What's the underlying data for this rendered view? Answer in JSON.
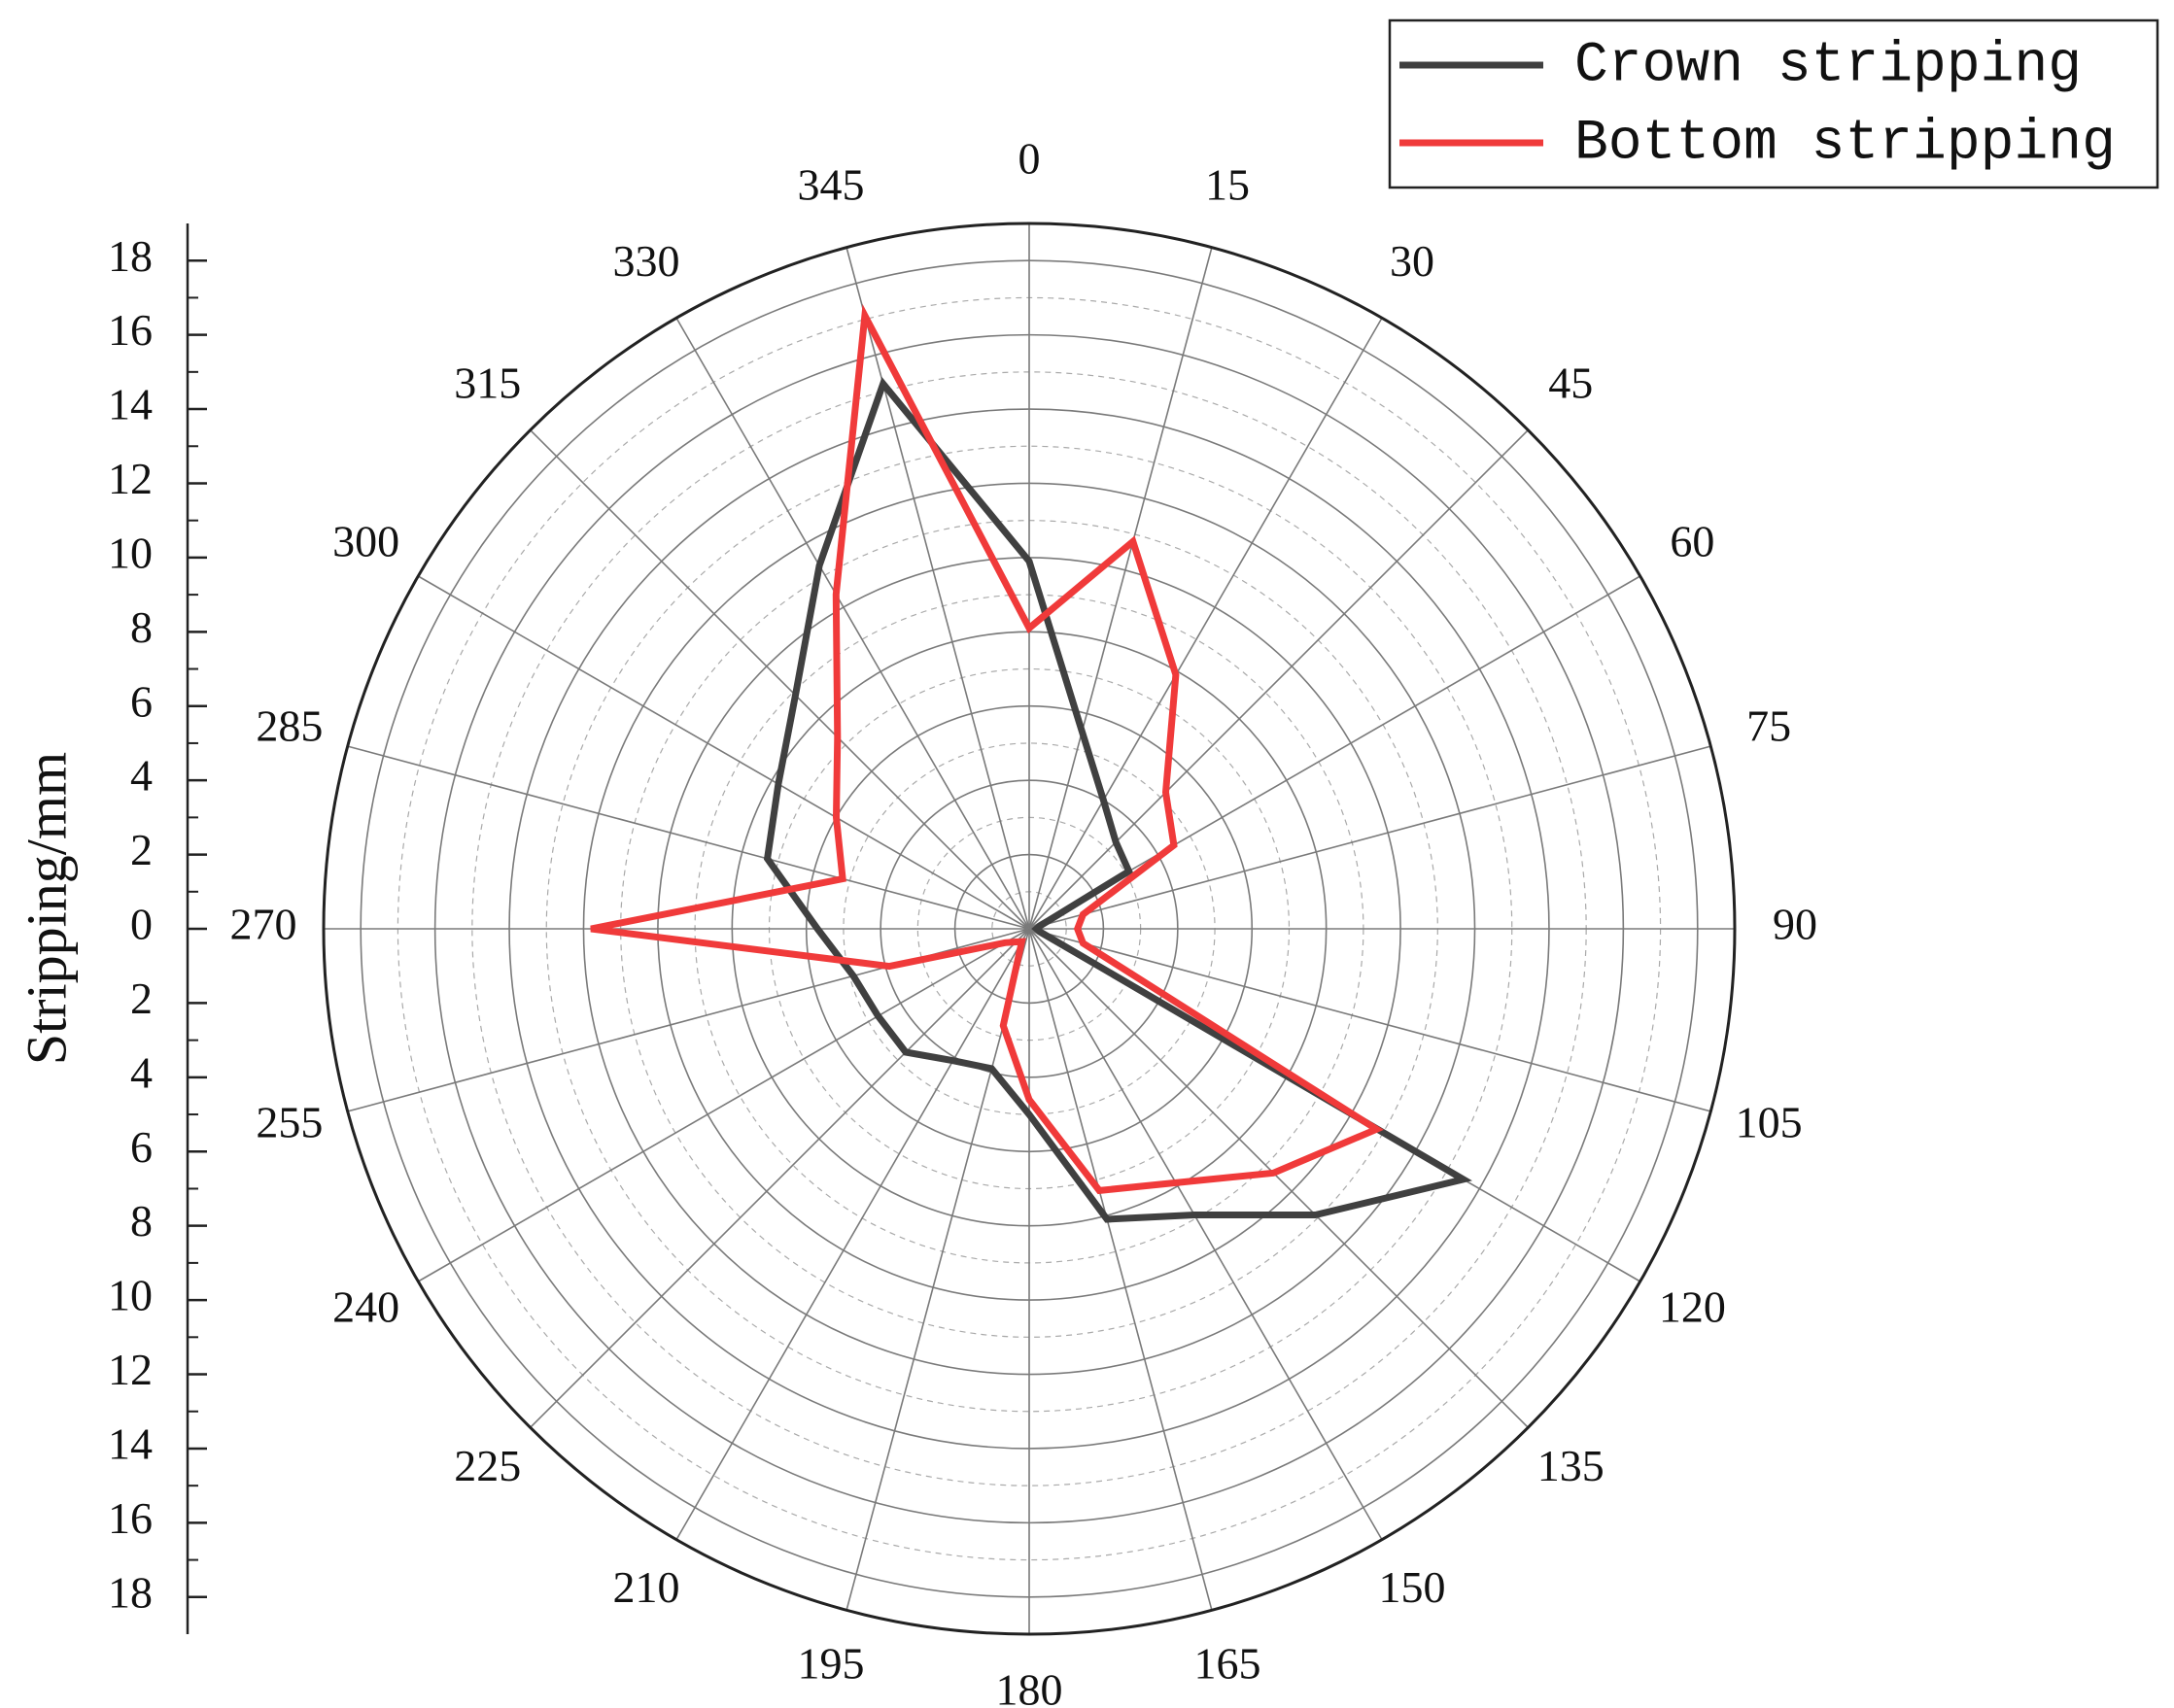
{
  "chart_data": {
    "type": "polar",
    "y_label": "Stripping/mm",
    "x": [
      0,
      15,
      30,
      45,
      60,
      75,
      90,
      105,
      120,
      135,
      150,
      165,
      180,
      195,
      210,
      225,
      240,
      255,
      270,
      285,
      300,
      315,
      330,
      345
    ],
    "xlim": [
      0,
      360
    ],
    "xticks": [
      0,
      15,
      30,
      45,
      60,
      75,
      90,
      105,
      120,
      135,
      150,
      165,
      180,
      195,
      210,
      225,
      240,
      255,
      270,
      285,
      300,
      315,
      330,
      345
    ],
    "ylim": [
      0,
      19
    ],
    "yticks": [
      0,
      2,
      4,
      6,
      8,
      10,
      12,
      14,
      16,
      18
    ],
    "grid": true,
    "legend": "top-right",
    "series": [
      {
        "name": "Crown stripping",
        "color": "#404040",
        "values": [
          9.9,
          5.5,
          4.0,
          3.3,
          3.1,
          0.3,
          0.2,
          0.3,
          13.5,
          10.9,
          8.9,
          8.1,
          5.0,
          3.9,
          4.1,
          4.7,
          4.7,
          4.9,
          5.7,
          7.3,
          7.8,
          8.9,
          11.3,
          15.2
        ]
      },
      {
        "name": "Bottom stripping",
        "color": "#f03a3a",
        "values": [
          8.1,
          10.8,
          7.9,
          5.2,
          4.5,
          1.5,
          1.3,
          1.5,
          10.8,
          9.3,
          7.9,
          7.3,
          4.6,
          2.7,
          0.4,
          0.5,
          0.75,
          3.9,
          11.8,
          5.2,
          6.0,
          7.3,
          10.4,
          17.1
        ]
      }
    ]
  }
}
